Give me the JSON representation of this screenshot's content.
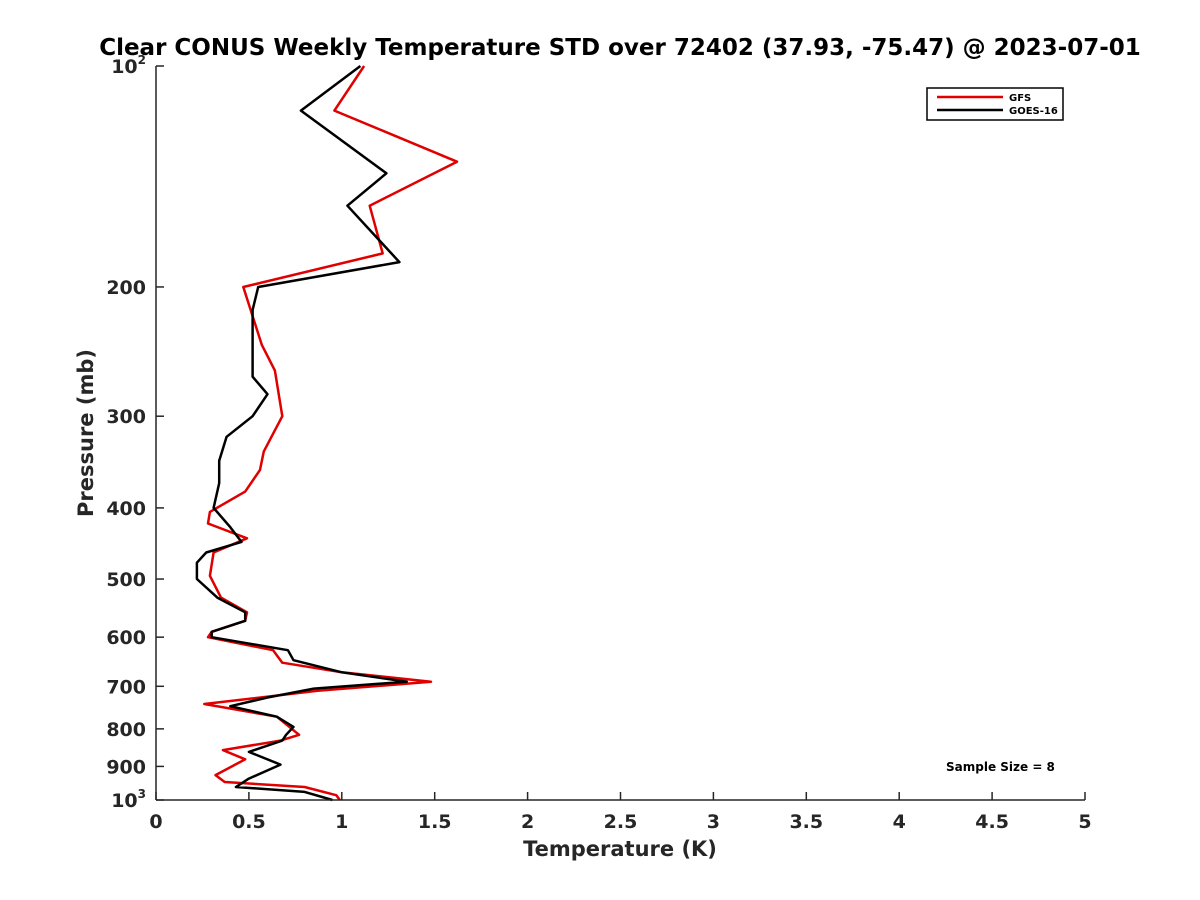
{
  "chart_data": {
    "type": "line",
    "title": "Clear CONUS Weekly Temperature STD over 72402 (37.93, -75.47) @ 2023-07-01",
    "xlabel": "Temperature (K)",
    "ylabel": "Pressure (mb)",
    "xlim": [
      0,
      5
    ],
    "ylim": [
      100,
      1000
    ],
    "yscale": "log",
    "y_reversed": true,
    "x_ticks": [
      0,
      0.5,
      1,
      1.5,
      2,
      2.5,
      3,
      3.5,
      4,
      4.5,
      5
    ],
    "x_tick_labels": [
      "0",
      "0.5",
      "1",
      "1.5",
      "2",
      "2.5",
      "3",
      "3.5",
      "4",
      "4.5",
      "5"
    ],
    "y_ticks": [
      {
        "value": 100,
        "base": "10",
        "exp": "2"
      },
      {
        "value": 200,
        "label": "200"
      },
      {
        "value": 300,
        "label": "300"
      },
      {
        "value": 400,
        "label": "400"
      },
      {
        "value": 500,
        "label": "500"
      },
      {
        "value": 600,
        "label": "600"
      },
      {
        "value": 700,
        "label": "700"
      },
      {
        "value": 800,
        "label": "800"
      },
      {
        "value": 900,
        "label": "900"
      },
      {
        "value": 1000,
        "base": "10",
        "exp": "3"
      }
    ],
    "legend_position": "top-right",
    "grid": false,
    "annotation": "Sample Size = 8",
    "series": [
      {
        "name": "GFS",
        "color": "#e00000",
        "points": [
          [
            1.12,
            100
          ],
          [
            0.96,
            115
          ],
          [
            1.62,
            135
          ],
          [
            1.15,
            155
          ],
          [
            1.22,
            180
          ],
          [
            0.47,
            200
          ],
          [
            0.57,
            240
          ],
          [
            0.64,
            260
          ],
          [
            0.68,
            300
          ],
          [
            0.58,
            335
          ],
          [
            0.56,
            355
          ],
          [
            0.48,
            380
          ],
          [
            0.29,
            405
          ],
          [
            0.28,
            420
          ],
          [
            0.49,
            440
          ],
          [
            0.31,
            460
          ],
          [
            0.29,
            495
          ],
          [
            0.35,
            530
          ],
          [
            0.49,
            555
          ],
          [
            0.48,
            570
          ],
          [
            0.3,
            590
          ],
          [
            0.28,
            600
          ],
          [
            0.63,
            625
          ],
          [
            0.68,
            650
          ],
          [
            1.0,
            670
          ],
          [
            1.48,
            690
          ],
          [
            0.87,
            710
          ],
          [
            0.26,
            740
          ],
          [
            0.65,
            770
          ],
          [
            0.77,
            815
          ],
          [
            0.67,
            830
          ],
          [
            0.36,
            855
          ],
          [
            0.48,
            880
          ],
          [
            0.32,
            925
          ],
          [
            0.37,
            945
          ],
          [
            0.8,
            960
          ],
          [
            0.97,
            985
          ],
          [
            0.99,
            1000
          ]
        ]
      },
      {
        "name": "GOES-16",
        "color": "#000000",
        "points": [
          [
            1.1,
            100
          ],
          [
            0.78,
            115
          ],
          [
            1.24,
            140
          ],
          [
            1.03,
            155
          ],
          [
            1.31,
            185
          ],
          [
            0.55,
            200
          ],
          [
            0.52,
            215
          ],
          [
            0.52,
            240
          ],
          [
            0.52,
            265
          ],
          [
            0.6,
            280
          ],
          [
            0.52,
            300
          ],
          [
            0.38,
            320
          ],
          [
            0.34,
            345
          ],
          [
            0.34,
            370
          ],
          [
            0.31,
            400
          ],
          [
            0.4,
            425
          ],
          [
            0.46,
            445
          ],
          [
            0.27,
            460
          ],
          [
            0.22,
            475
          ],
          [
            0.22,
            500
          ],
          [
            0.33,
            530
          ],
          [
            0.48,
            555
          ],
          [
            0.48,
            570
          ],
          [
            0.3,
            590
          ],
          [
            0.3,
            600
          ],
          [
            0.71,
            625
          ],
          [
            0.74,
            645
          ],
          [
            1.0,
            670
          ],
          [
            1.35,
            690
          ],
          [
            0.85,
            705
          ],
          [
            0.6,
            725
          ],
          [
            0.4,
            745
          ],
          [
            0.65,
            770
          ],
          [
            0.74,
            795
          ],
          [
            0.7,
            815
          ],
          [
            0.68,
            830
          ],
          [
            0.5,
            860
          ],
          [
            0.67,
            895
          ],
          [
            0.5,
            935
          ],
          [
            0.43,
            960
          ],
          [
            0.8,
            975
          ],
          [
            0.95,
            1000
          ]
        ]
      }
    ]
  }
}
